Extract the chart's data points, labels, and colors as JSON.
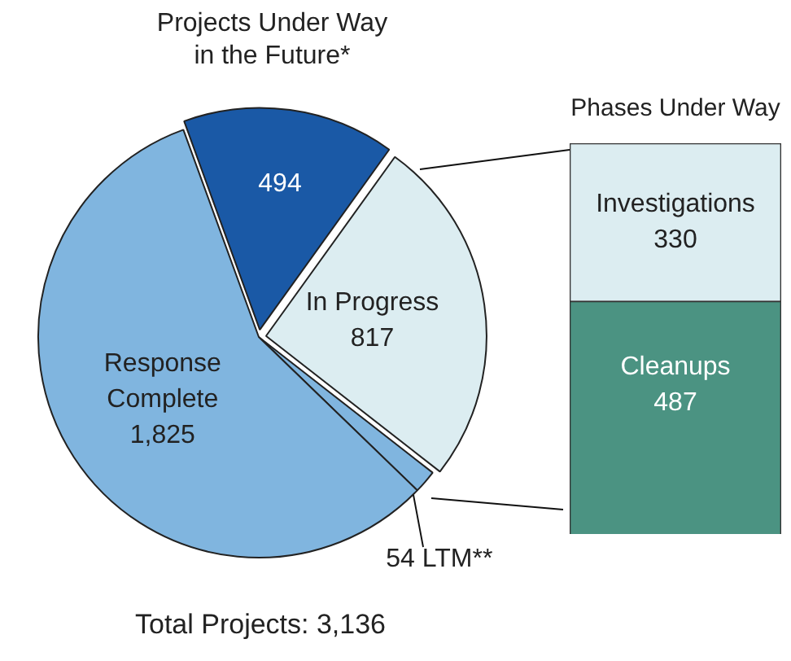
{
  "chart_data": [
    {
      "type": "pie",
      "categories": [
        "Projects Under Way in the Future*",
        "In Progress",
        "LTM**",
        "Response Complete"
      ],
      "values": [
        494,
        817,
        54,
        1825
      ],
      "value_labels": [
        "494",
        "817",
        "54",
        "1,825"
      ],
      "colors": [
        "#1a59a6",
        "#dcedf1",
        "#80b5df",
        "#80b5df"
      ],
      "annotations": [
        "Total Projects: 3,136"
      ]
    },
    {
      "type": "bar",
      "title": "Phases Under Way",
      "categories": [
        null
      ],
      "stacked": true,
      "data_labels": true,
      "series": [
        {
          "name": "Cleanups",
          "color": "#4b9382",
          "values": [
            487
          ]
        },
        {
          "name": "Investigations",
          "color": "#dcedf1",
          "values": [
            330
          ]
        }
      ]
    }
  ]
}
